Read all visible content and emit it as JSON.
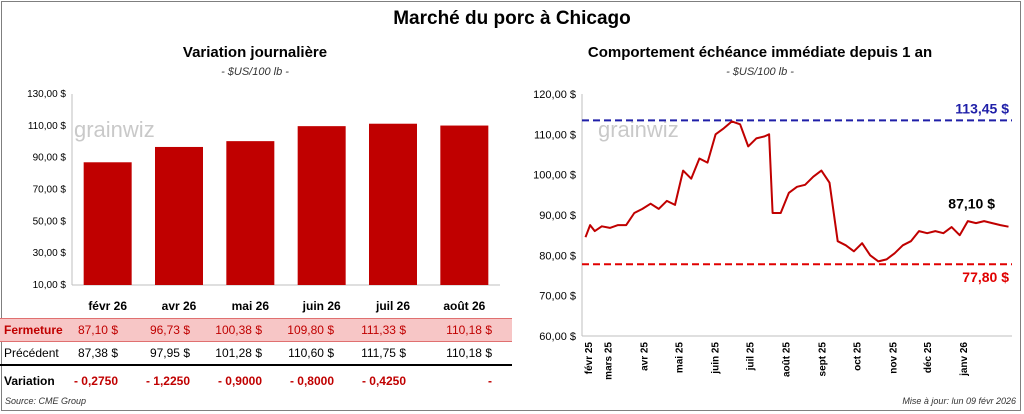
{
  "title": "Marché du porc à Chicago",
  "watermark": "grainwiz",
  "colors": {
    "bar": "#c00000",
    "line": "#c00000",
    "high": "#1f1fa8",
    "low": "#e00000"
  },
  "chart_data": [
    {
      "type": "bar",
      "title": "Variation journalière",
      "unit": "- $US/100 lb -",
      "categories": [
        "févr 26",
        "avr 26",
        "mai 26",
        "juin 26",
        "juil 26",
        "août 26"
      ],
      "values": [
        87.1,
        96.73,
        100.38,
        109.8,
        111.33,
        110.18
      ],
      "ylim": [
        10,
        130
      ],
      "yticks": [
        "10,00 $",
        "30,00 $",
        "50,00 $",
        "70,00 $",
        "90,00 $",
        "110,00 $",
        "130,00 $"
      ],
      "grid": false
    },
    {
      "type": "line",
      "title": "Comportement échéance immédiate depuis 1 an",
      "unit": "- $US/100 lb -",
      "ylim": [
        60,
        120
      ],
      "yticks": [
        "60,00 $",
        "70,00 $",
        "80,00 $",
        "90,00 $",
        "100,00 $",
        "110,00 $",
        "120,00 $"
      ],
      "xticks": [
        "févr 25",
        "mars 25",
        "avr 25",
        "mai 25",
        "juin 25",
        "juil 25",
        "août 25",
        "sept 25",
        "oct 25",
        "nov 25",
        "déc 25",
        "janv 26"
      ],
      "x": [
        "2025-02-10",
        "2025-02-14",
        "2025-02-18",
        "2025-02-24",
        "2025-03-03",
        "2025-03-10",
        "2025-03-17",
        "2025-03-24",
        "2025-03-31",
        "2025-04-07",
        "2025-04-14",
        "2025-04-21",
        "2025-04-28",
        "2025-05-05",
        "2025-05-12",
        "2025-05-19",
        "2025-05-26",
        "2025-06-02",
        "2025-06-09",
        "2025-06-16",
        "2025-06-23",
        "2025-06-30",
        "2025-07-07",
        "2025-07-14",
        "2025-07-18",
        "2025-07-21",
        "2025-07-28",
        "2025-08-04",
        "2025-08-11",
        "2025-08-18",
        "2025-08-25",
        "2025-09-01",
        "2025-09-08",
        "2025-09-15",
        "2025-09-22",
        "2025-09-29",
        "2025-10-06",
        "2025-10-13",
        "2025-10-20",
        "2025-10-27",
        "2025-11-03",
        "2025-11-10",
        "2025-11-17",
        "2025-11-24",
        "2025-12-01",
        "2025-12-08",
        "2025-12-15",
        "2025-12-22",
        "2025-12-29",
        "2026-01-05",
        "2026-01-12",
        "2026-01-19",
        "2026-01-26",
        "2026-02-02",
        "2026-02-09"
      ],
      "series": [
        {
          "values": [
            84.5,
            87.5,
            86.0,
            87.2,
            86.8,
            87.5,
            87.5,
            90.5,
            91.5,
            92.8,
            91.5,
            93.5,
            92.5,
            101.0,
            99.0,
            104.0,
            103.0,
            110.0,
            111.5,
            113.2,
            112.5,
            107.0,
            109.0,
            109.5,
            110.0,
            90.5,
            90.5,
            95.5,
            97.0,
            97.5,
            99.5,
            101.0,
            98.0,
            83.5,
            82.5,
            81.0,
            83.0,
            80.0,
            78.5,
            79.0,
            80.5,
            82.5,
            83.5,
            86.0,
            85.5,
            86.0,
            85.5,
            87.0,
            85.0,
            88.5,
            88.0,
            88.5,
            88.0,
            87.5,
            87.1
          ]
        }
      ],
      "annotations": [
        {
          "label": "113,45 $",
          "value": 113.45,
          "kind": "high"
        },
        {
          "label": "77,80 $",
          "value": 77.8,
          "kind": "low"
        },
        {
          "label": "87,10 $",
          "value": 87.1,
          "kind": "last"
        }
      ],
      "grid": false
    }
  ],
  "table": {
    "labels": {
      "close": "Fermeture",
      "prev": "Précédent",
      "var": "Variation"
    },
    "close": [
      "87,10  $",
      "96,73  $",
      "100,38  $",
      "109,80  $",
      "111,33  $",
      "110,18  $"
    ],
    "prev": [
      "87,38  $",
      "97,95  $",
      "101,28  $",
      "110,60  $",
      "111,75  $",
      "110,18  $"
    ],
    "var": [
      "- 0,2750",
      "- 1,2250",
      "- 0,9000",
      "- 0,8000",
      "- 0,4250",
      "-"
    ]
  },
  "footer": {
    "source": "Source: CME Group",
    "updated": "Mise à jour: lun 09 févr 2026"
  }
}
